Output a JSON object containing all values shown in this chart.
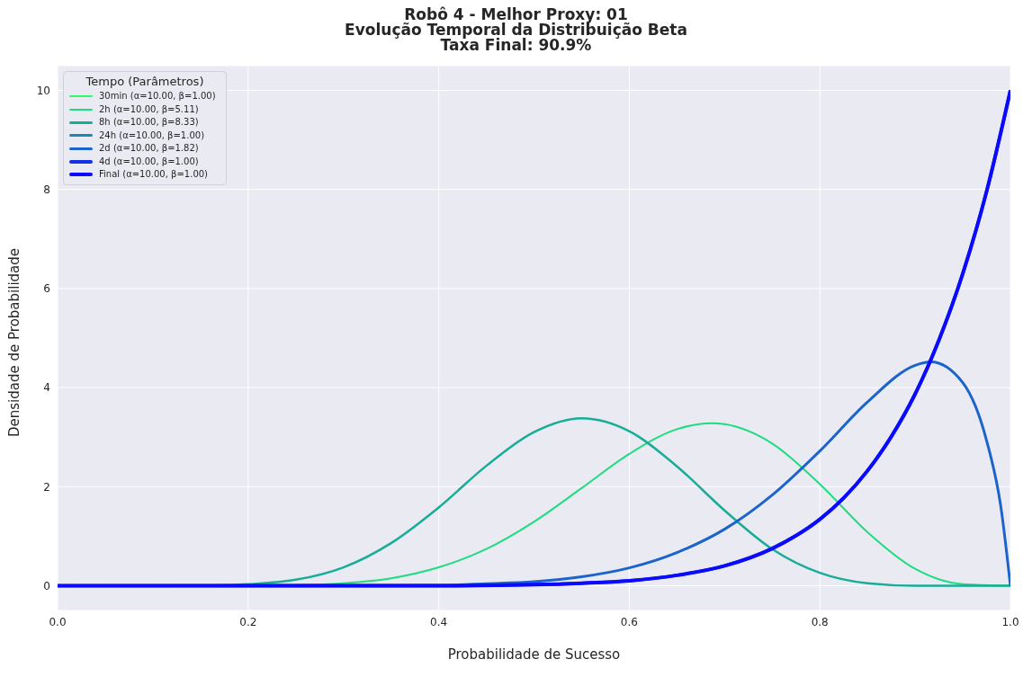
{
  "chart_data": {
    "type": "line",
    "title": "Robô 4 - Melhor Proxy: 01\nEvolução Temporal da Distribuição Beta\nTaxa Final: 90.9%",
    "xlabel": "Probabilidade de Sucesso",
    "ylabel": "Densidade de Probabilidade",
    "legend_title": "Tempo (Parâmetros)",
    "legend": "top left",
    "grid": true,
    "marker": "none",
    "line_style": "solid",
    "xlim": [
      0,
      1
    ],
    "ylim": [
      -0.5,
      10.5
    ],
    "xticks": [
      {
        "value": 0,
        "label": "0.0"
      },
      {
        "value": 0.2,
        "label": "0.2"
      },
      {
        "value": 0.4,
        "label": "0.4"
      },
      {
        "value": 0.6,
        "label": "0.6"
      },
      {
        "value": 0.8,
        "label": "0.8"
      },
      {
        "value": 1,
        "label": "1.0"
      }
    ],
    "yticks": [
      0,
      2,
      4,
      6,
      8,
      10
    ],
    "series": [
      {
        "name": "30min (α=10.00, β=1.00)",
        "color": "#2dfa6a",
        "values": [
          null
        ]
      },
      {
        "name": "2h (α=10.00, β=5.11)",
        "color": "#1edc80",
        "x": [
          0,
          0.2,
          0.25,
          0.3,
          0.35,
          0.4,
          0.45,
          0.5,
          0.55,
          0.6,
          0.65,
          0.6865,
          0.7,
          0.75,
          0.8,
          0.85,
          0.9,
          0.95,
          1
        ],
        "values": [
          0,
          0,
          0.01,
          0.05,
          0.15,
          0.37,
          0.74,
          1.29,
          1.97,
          2.66,
          3.16,
          3.28,
          3.26,
          2.87,
          2.05,
          1.08,
          0.34,
          0.03,
          0
        ]
      },
      {
        "name": "8h (α=10.00, β=8.33)",
        "color": "#17ad96",
        "x": [
          0,
          0.15,
          0.2,
          0.25,
          0.3,
          0.35,
          0.4,
          0.45,
          0.5,
          0.55,
          0.6,
          0.65,
          0.7,
          0.75,
          0.8,
          0.85,
          0.9,
          0.95,
          1
        ],
        "values": [
          0,
          0,
          0.03,
          0.12,
          0.37,
          0.86,
          1.58,
          2.42,
          3.1,
          3.38,
          3.12,
          2.41,
          1.52,
          0.74,
          0.26,
          0.05,
          0,
          0,
          0
        ]
      },
      {
        "name": "24h (α=10.00, β=1.00)",
        "color": "#1b87b5",
        "values": [
          null
        ]
      },
      {
        "name": "2d (α=10.00, β=1.82)",
        "color": "#1b64cc",
        "x": [
          0,
          0.4,
          0.45,
          0.5,
          0.55,
          0.6,
          0.65,
          0.7,
          0.75,
          0.8,
          0.85,
          0.9,
          0.9165,
          0.95,
          0.975,
          0.99,
          1
        ],
        "values": [
          0,
          0.01,
          0.04,
          0.08,
          0.18,
          0.36,
          0.67,
          1.14,
          1.83,
          2.72,
          3.71,
          4.45,
          4.52,
          4.1,
          2.93,
          1.59,
          0
        ]
      },
      {
        "name": "4d (α=10.00, β=1.00)",
        "color": "#1232e6",
        "x": [
          0,
          0.4,
          0.5,
          0.55,
          0.6,
          0.65,
          0.7,
          0.75,
          0.775,
          0.8,
          0.825,
          0.85,
          0.875,
          0.9,
          0.925,
          0.95,
          0.975,
          1
        ],
        "values": [
          0,
          0,
          0.02,
          0.05,
          0.1,
          0.21,
          0.4,
          0.75,
          1.01,
          1.34,
          1.77,
          2.32,
          3.01,
          3.87,
          4.96,
          6.3,
          7.96,
          10
        ]
      },
      {
        "name": "Final (α=10.00, β=1.00)",
        "color": "#0a0aff",
        "x": [
          0,
          0.4,
          0.5,
          0.55,
          0.6,
          0.65,
          0.7,
          0.75,
          0.775,
          0.8,
          0.825,
          0.85,
          0.875,
          0.9,
          0.925,
          0.95,
          0.975,
          1
        ],
        "values": [
          0,
          0,
          0.02,
          0.05,
          0.1,
          0.21,
          0.4,
          0.75,
          1.01,
          1.34,
          1.77,
          2.32,
          3.01,
          3.87,
          4.96,
          6.3,
          7.96,
          10
        ]
      }
    ]
  }
}
